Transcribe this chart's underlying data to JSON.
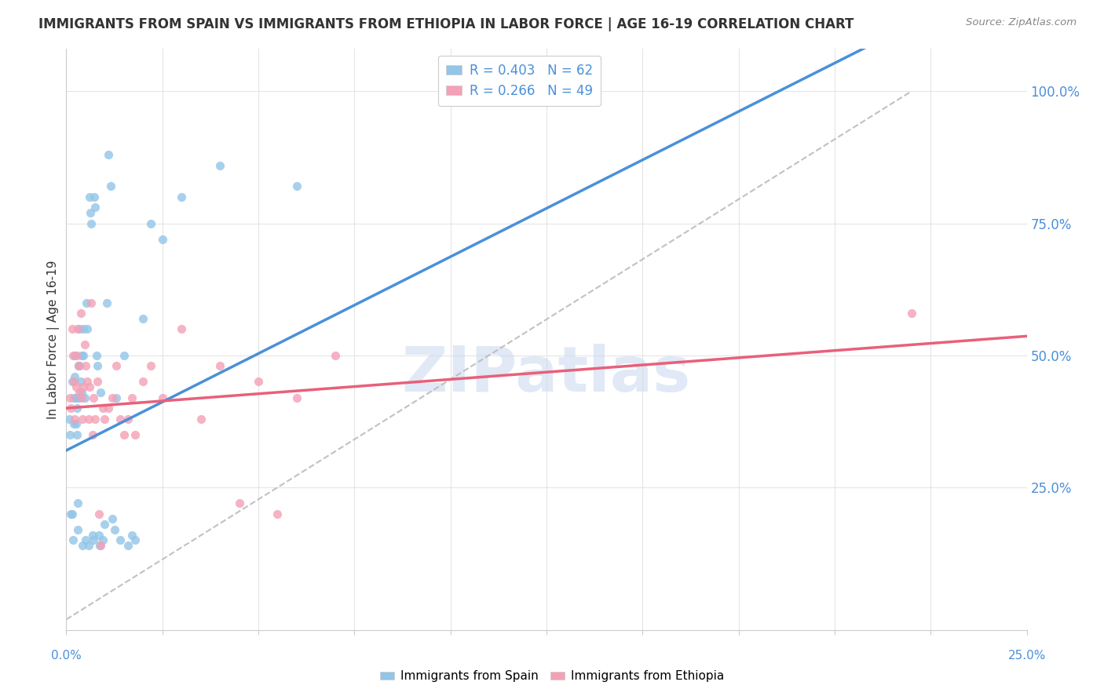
{
  "title": "IMMIGRANTS FROM SPAIN VS IMMIGRANTS FROM ETHIOPIA IN LABOR FORCE | AGE 16-19 CORRELATION CHART",
  "source": "Source: ZipAtlas.com",
  "ylabel": "In Labor Force | Age 16-19",
  "right_yticks": [
    0.25,
    0.5,
    0.75,
    1.0
  ],
  "right_yticklabels": [
    "25.0%",
    "50.0%",
    "75.0%",
    "100.0%"
  ],
  "xlim": [
    0.0,
    0.25
  ],
  "ylim": [
    -0.02,
    1.08
  ],
  "spain_R": 0.403,
  "spain_N": 62,
  "ethiopia_R": 0.266,
  "ethiopia_N": 49,
  "spain_color": "#92C5E8",
  "ethiopia_color": "#F4A0B5",
  "spain_line_color": "#4A90D9",
  "ethiopia_line_color": "#E8607A",
  "ref_line_color": "#BBBBBB",
  "watermark_color": "#C8D8EE",
  "spain_x": [
    0.0008,
    0.001,
    0.0012,
    0.0015,
    0.0015,
    0.0018,
    0.002,
    0.002,
    0.0022,
    0.0022,
    0.0025,
    0.0025,
    0.0028,
    0.0028,
    0.003,
    0.003,
    0.0032,
    0.0032,
    0.0035,
    0.0035,
    0.0038,
    0.004,
    0.004,
    0.0042,
    0.0045,
    0.0045,
    0.0048,
    0.005,
    0.0052,
    0.0055,
    0.0058,
    0.006,
    0.0062,
    0.0065,
    0.0068,
    0.007,
    0.0072,
    0.0075,
    0.0078,
    0.008,
    0.0085,
    0.0088,
    0.009,
    0.0095,
    0.01,
    0.0105,
    0.011,
    0.0115,
    0.012,
    0.0125,
    0.013,
    0.014,
    0.015,
    0.016,
    0.017,
    0.018,
    0.02,
    0.022,
    0.025,
    0.03,
    0.04,
    0.06
  ],
  "spain_y": [
    0.38,
    0.35,
    0.2,
    0.45,
    0.2,
    0.15,
    0.42,
    0.37,
    0.5,
    0.46,
    0.42,
    0.37,
    0.4,
    0.35,
    0.22,
    0.17,
    0.48,
    0.42,
    0.55,
    0.48,
    0.45,
    0.5,
    0.43,
    0.14,
    0.55,
    0.5,
    0.42,
    0.15,
    0.6,
    0.55,
    0.14,
    0.8,
    0.77,
    0.75,
    0.16,
    0.15,
    0.8,
    0.78,
    0.5,
    0.48,
    0.16,
    0.14,
    0.43,
    0.15,
    0.18,
    0.6,
    0.88,
    0.82,
    0.19,
    0.17,
    0.42,
    0.15,
    0.5,
    0.14,
    0.16,
    0.15,
    0.57,
    0.75,
    0.72,
    0.8,
    0.86,
    0.82
  ],
  "ethiopia_x": [
    0.001,
    0.0012,
    0.0015,
    0.0018,
    0.002,
    0.0022,
    0.0025,
    0.0028,
    0.003,
    0.0032,
    0.0035,
    0.0038,
    0.004,
    0.0042,
    0.0045,
    0.0048,
    0.005,
    0.0055,
    0.0058,
    0.006,
    0.0065,
    0.0068,
    0.007,
    0.0075,
    0.008,
    0.0085,
    0.009,
    0.0095,
    0.01,
    0.011,
    0.012,
    0.013,
    0.014,
    0.015,
    0.016,
    0.017,
    0.018,
    0.02,
    0.022,
    0.025,
    0.03,
    0.035,
    0.04,
    0.045,
    0.05,
    0.055,
    0.06,
    0.07,
    0.22
  ],
  "ethiopia_y": [
    0.42,
    0.4,
    0.55,
    0.5,
    0.45,
    0.38,
    0.44,
    0.5,
    0.55,
    0.48,
    0.43,
    0.58,
    0.42,
    0.38,
    0.44,
    0.52,
    0.48,
    0.45,
    0.38,
    0.44,
    0.6,
    0.35,
    0.42,
    0.38,
    0.45,
    0.2,
    0.14,
    0.4,
    0.38,
    0.4,
    0.42,
    0.48,
    0.38,
    0.35,
    0.38,
    0.42,
    0.35,
    0.45,
    0.48,
    0.42,
    0.55,
    0.38,
    0.48,
    0.22,
    0.45,
    0.2,
    0.42,
    0.5,
    0.58
  ],
  "background_color": "#FFFFFF",
  "grid_color": "#E5E5E5"
}
